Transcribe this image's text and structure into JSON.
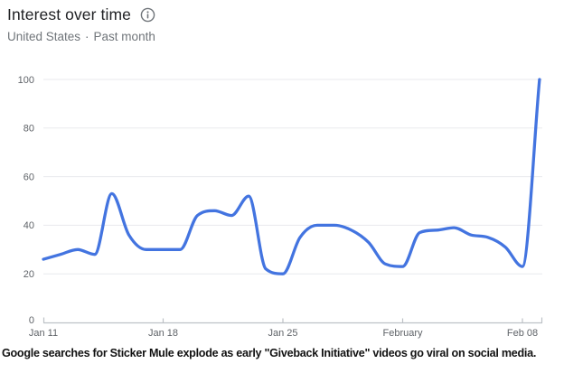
{
  "header": {
    "title": "Interest over time",
    "subtitle": {
      "region": "United States",
      "separator": "·",
      "timeframe": "Past month"
    }
  },
  "icons": {
    "info": "circle-i-outline"
  },
  "colors": {
    "line": "#4374e0",
    "grid": "#e8eaed",
    "axis": "#bdc1c6",
    "axis_label": "#5f6368",
    "title": "#202124",
    "subtitle": "#70757a",
    "caption": "#121212"
  },
  "chart_data": {
    "type": "line",
    "title": "Interest over time",
    "geo": "United States",
    "time_range": "Past month",
    "x": [
      "Jan 11",
      "Jan 12",
      "Jan 13",
      "Jan 14",
      "Jan 15",
      "Jan 16",
      "Jan 17",
      "Jan 18",
      "Jan 19",
      "Jan 20",
      "Jan 21",
      "Jan 22",
      "Jan 23",
      "Jan 24",
      "Jan 25",
      "Jan 26",
      "Jan 27",
      "Jan 28",
      "Jan 29",
      "Jan 30",
      "Jan 31",
      "Feb 1",
      "Feb 2",
      "Feb 3",
      "Feb 4",
      "Feb 5",
      "Feb 6",
      "Feb 7",
      "Feb 8",
      "Feb 9"
    ],
    "series": [
      {
        "name": "Interest",
        "values": [
          26,
          28,
          30,
          28,
          53,
          36,
          30,
          30,
          30,
          44,
          46,
          44,
          52,
          22,
          20,
          35,
          40,
          40,
          38,
          33,
          24,
          23,
          37,
          38,
          39,
          36,
          35,
          31,
          23,
          100
        ]
      }
    ],
    "ylim": [
      0,
      100
    ],
    "y_ticks": [
      0,
      20,
      40,
      60,
      80,
      100
    ],
    "x_tick_labels": [
      "Jan 11",
      "Jan 18",
      "Jan 25",
      "February",
      "Feb 08"
    ],
    "x_tick_positions": [
      0,
      7,
      14,
      21,
      28
    ],
    "grid": "horizontal",
    "legend": "none"
  },
  "caption": "Google searches for Sticker Mule explode as early \"Giveback Initiative\" videos go viral on social media."
}
